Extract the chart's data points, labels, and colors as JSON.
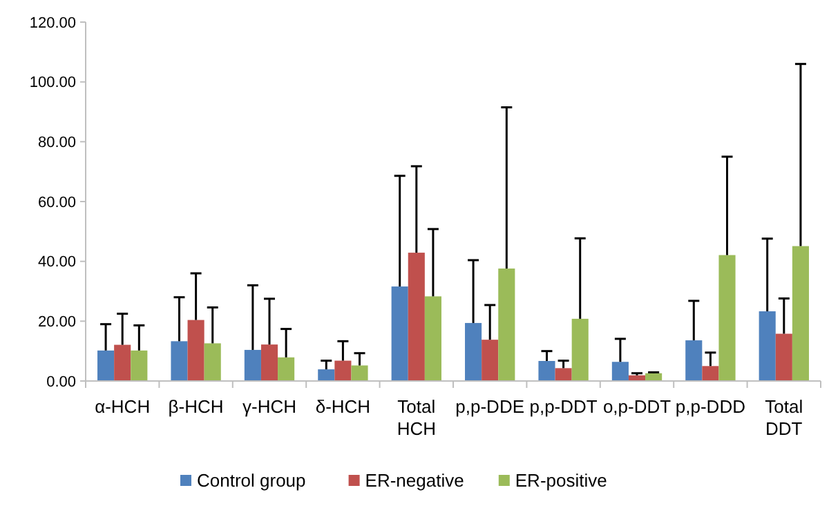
{
  "chart_data": {
    "type": "bar",
    "categories": [
      "α-HCH",
      "β-HCH",
      "γ-HCH",
      "δ-HCH",
      "Total HCH",
      "p,p-DDE",
      "p,p-DDT",
      "o,p-DDT",
      "p,p-DDD",
      "Total DDT"
    ],
    "series": [
      {
        "name": "Control group",
        "color": "#4f81bd",
        "values": [
          10.2,
          13.3,
          10.4,
          3.9,
          31.6,
          19.4,
          6.7,
          6.4,
          13.6,
          23.3
        ],
        "errors": [
          [
            10.2,
            19
          ],
          [
            13.3,
            28
          ],
          [
            10.4,
            32
          ],
          [
            3.9,
            6.8
          ],
          [
            31.6,
            68.6
          ],
          [
            19.4,
            40.4
          ],
          [
            6.7,
            10
          ],
          [
            6.4,
            14.1
          ],
          [
            13.6,
            26.8
          ],
          [
            23.3,
            47.6
          ]
        ]
      },
      {
        "name": "ER-negative",
        "color": "#c0504d",
        "values": [
          12.1,
          20.4,
          12.2,
          6.8,
          42.9,
          13.8,
          4.3,
          1.9,
          5.0,
          15.8
        ],
        "errors": [
          [
            12.1,
            22.5
          ],
          [
            20.4,
            36
          ],
          [
            12.2,
            27.5
          ],
          [
            6.8,
            13.3
          ],
          [
            42.9,
            71.8
          ],
          [
            13.8,
            25.4
          ],
          [
            4.3,
            6.8
          ],
          [
            1.9,
            2.6
          ],
          [
            5.0,
            9.5
          ],
          [
            15.8,
            27.6
          ]
        ]
      },
      {
        "name": "ER-positive",
        "color": "#9bbb59",
        "values": [
          10.2,
          12.6,
          7.9,
          5.2,
          28.3,
          37.6,
          20.8,
          2.6,
          42.1,
          45.1
        ],
        "errors": [
          [
            10.2,
            18.6
          ],
          [
            12.6,
            24.6
          ],
          [
            7.9,
            17.4
          ],
          [
            5.2,
            9.3
          ],
          [
            28.3,
            50.8
          ],
          [
            37.6,
            91.5
          ],
          [
            20.8,
            47.7
          ],
          [
            2.6,
            2.9
          ],
          [
            42.1,
            75
          ],
          [
            45.1,
            106
          ]
        ]
      }
    ],
    "ylim": [
      0,
      120
    ],
    "yticks": [
      {
        "value": 0,
        "label": "0.00"
      },
      {
        "value": 20,
        "label": "20.00"
      },
      {
        "value": 40,
        "label": "40.00"
      },
      {
        "value": 60,
        "label": "60.00"
      },
      {
        "value": 80,
        "label": "80.00"
      },
      {
        "value": 100,
        "label": "100.00"
      },
      {
        "value": 120,
        "label": "120.00"
      }
    ],
    "grid": false,
    "legend": "bottom"
  }
}
